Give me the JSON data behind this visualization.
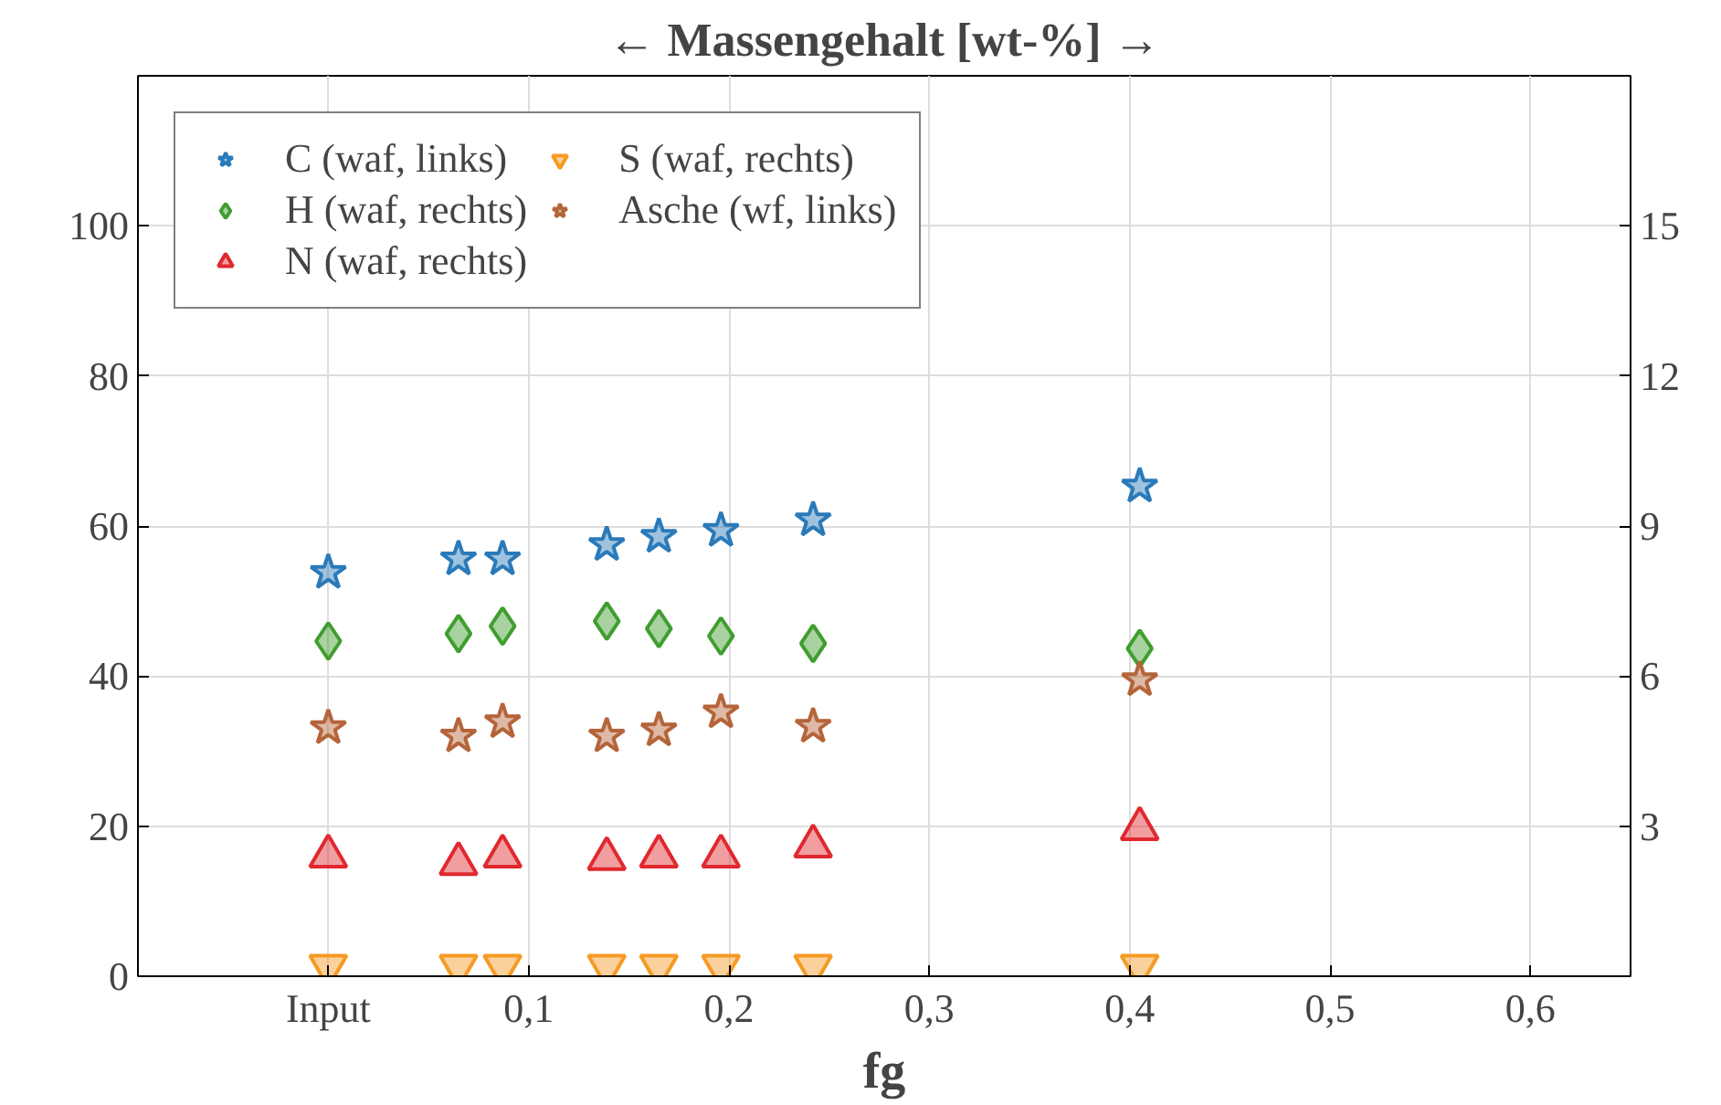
{
  "chart_data": {
    "type": "scatter",
    "title": "← Massengehalt [wt-%] →",
    "xlabel": "fg",
    "xlim": [
      -0.095,
      0.65
    ],
    "xticks": [
      {
        "value": 0,
        "label": "Input"
      },
      {
        "value": 0.1,
        "label": "0,1"
      },
      {
        "value": 0.2,
        "label": "0,2"
      },
      {
        "value": 0.3,
        "label": "0,3"
      },
      {
        "value": 0.4,
        "label": "0,4"
      },
      {
        "value": 0.5,
        "label": "0,5"
      },
      {
        "value": 0.6,
        "label": "0,6"
      }
    ],
    "ylim": [
      0,
      120
    ],
    "yticks": [
      0,
      20,
      40,
      60,
      80,
      100
    ],
    "y2lim": [
      0,
      18
    ],
    "y2ticks": [
      3,
      6,
      9,
      12,
      15
    ],
    "x": [
      0,
      0.065,
      0.087,
      0.139,
      0.165,
      0.196,
      0.242,
      0.405
    ],
    "grid": true,
    "legend": "top left",
    "series": [
      {
        "name": "C (waf, links)",
        "color": "#2a7ab9",
        "marker": "star",
        "values": [
          53.8,
          55.6,
          55.6,
          57.5,
          58.6,
          59.4,
          60.8,
          65.3
        ]
      },
      {
        "name": "H (waf, rechts)",
        "color": "#3f9e2f",
        "marker": "diamond",
        "axis": "y2",
        "values": [
          6.7,
          6.85,
          7.0,
          7.1,
          6.95,
          6.8,
          6.65,
          6.55
        ]
      },
      {
        "name": "N (waf, rechts)",
        "color": "#e0282e",
        "marker": "triangle",
        "axis": "y2",
        "values": [
          2.4,
          2.25,
          2.4,
          2.35,
          2.4,
          2.4,
          2.6,
          2.95
        ]
      },
      {
        "name": "S (waf, rechts)",
        "color": "#f59a23",
        "axis": "y2",
        "values": [
          0.2,
          0.2,
          0.2,
          0.2,
          0.2,
          0.2,
          0.2,
          0.2
        ]
      },
      {
        "name": "Asche (wf, links)",
        "color": "#b5643a",
        "marker": "star",
        "values": [
          33.1,
          32.0,
          33.9,
          32.0,
          32.8,
          35.2,
          33.3,
          39.5
        ]
      }
    ]
  }
}
